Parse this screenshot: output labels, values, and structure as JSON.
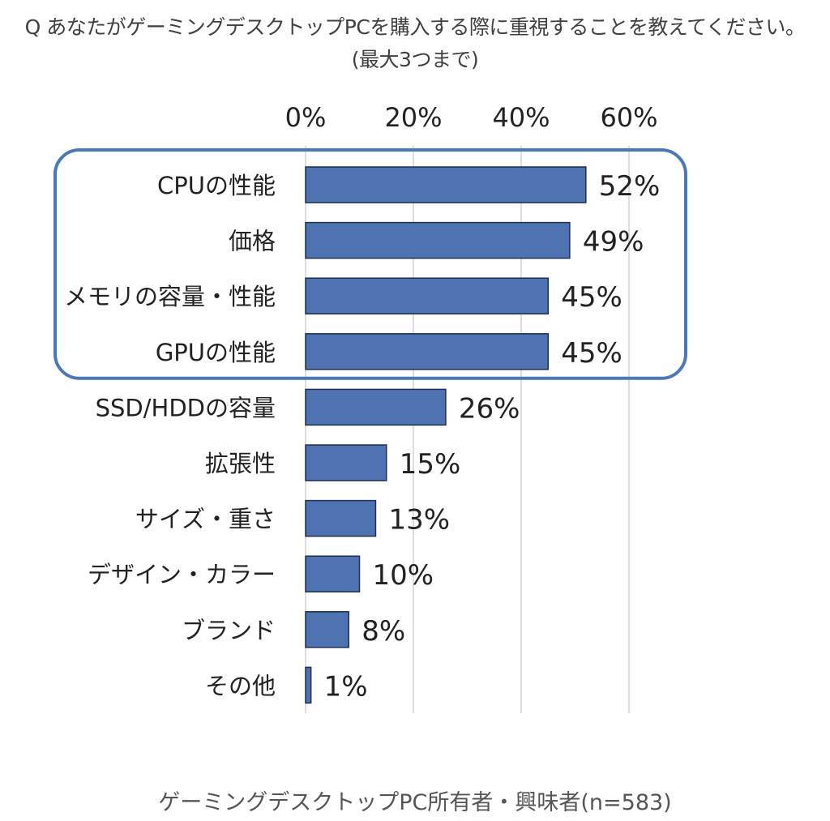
{
  "question": {
    "line1": "Q あなたがゲーミングデスクトップPCを購入する際に重視することを教えてください。",
    "line2": "(最大3つまで)"
  },
  "footer": "ゲーミングデスクトップPC所有者・興味者(n=583)",
  "colors": {
    "bar": "#4f72b0",
    "bar_border": "#1f2f4f",
    "highlight_border": "#4a78b8",
    "grid": "#d4d4d4"
  },
  "chart_data": {
    "type": "bar",
    "orientation": "horizontal",
    "categories": [
      "CPUの性能",
      "価格",
      "メモリの容量・性能",
      "GPUの性能",
      "SSD/HDDの容量",
      "拡張性",
      "サイズ・重さ",
      "デザイン・カラー",
      "ブランド",
      "その他"
    ],
    "values": [
      52,
      49,
      45,
      45,
      26,
      15,
      13,
      10,
      8,
      1
    ],
    "value_labels": [
      "52%",
      "49%",
      "45%",
      "45%",
      "26%",
      "15%",
      "13%",
      "10%",
      "8%",
      "1%"
    ],
    "x_ticks": [
      "0%",
      "20%",
      "40%",
      "60%"
    ],
    "x_tick_values": [
      0,
      20,
      40,
      60
    ],
    "xlim": [
      0,
      60
    ],
    "grid": true,
    "axis_position": "top",
    "highlight_range": [
      0,
      3
    ]
  }
}
